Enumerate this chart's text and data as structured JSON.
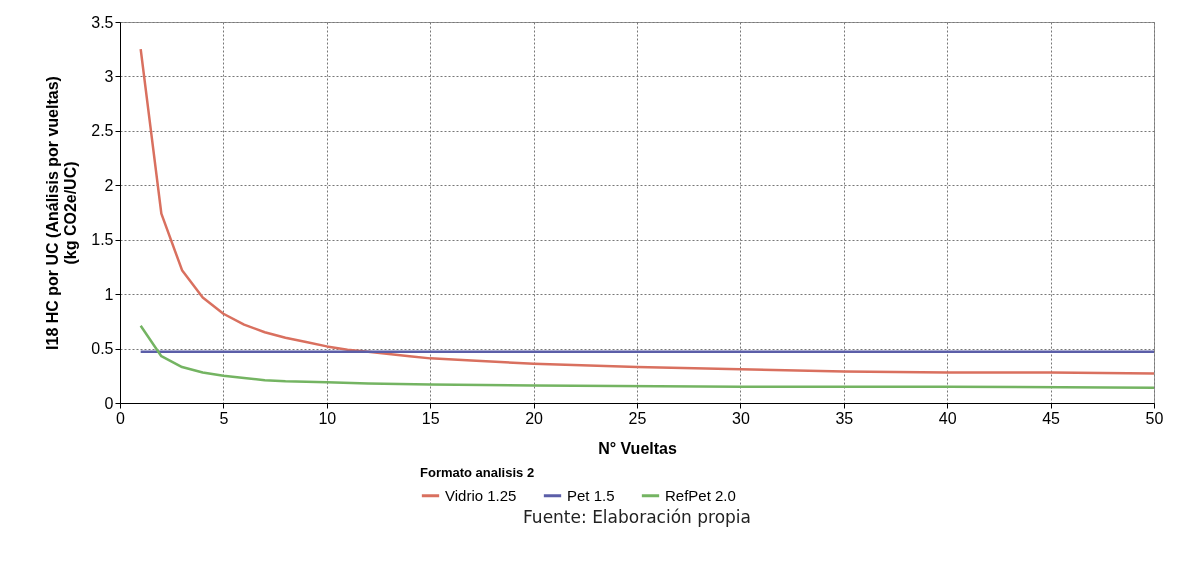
{
  "chart_data": {
    "type": "line",
    "xlabel": "N° Vueltas",
    "ylabel": "I18 HC por UC (Análisis por vueltas)\n(kg CO2e/UC)",
    "legend_title": "Formato analisis 2",
    "annotations": [
      "Fuente: Elaboración propia"
    ],
    "xlim": [
      0,
      50
    ],
    "xticks": [
      0,
      5,
      10,
      15,
      20,
      25,
      30,
      35,
      40,
      45,
      50
    ],
    "ylim": [
      0,
      3.5
    ],
    "yticks": [
      0,
      0.5,
      1,
      1.5,
      2,
      2.5,
      3,
      3.5
    ],
    "grid": true,
    "legend": "bottom",
    "line_style": "solid",
    "marker": "none",
    "series": [
      {
        "name": "Vidrio 1.25",
        "color": "#d9705f",
        "x": [
          1,
          2,
          3,
          4,
          5,
          6,
          7,
          8,
          9,
          10,
          11,
          12,
          13,
          14,
          15,
          17,
          20,
          25,
          30,
          35,
          40,
          45,
          50
        ],
        "values": [
          3.25,
          1.74,
          1.22,
          0.97,
          0.82,
          0.72,
          0.65,
          0.6,
          0.56,
          0.52,
          0.49,
          0.47,
          0.45,
          0.43,
          0.41,
          0.39,
          0.36,
          0.33,
          0.31,
          0.29,
          0.28,
          0.28,
          0.27
        ]
      },
      {
        "name": "Pet 1.5",
        "color": "#5b5ea8",
        "x": [
          1,
          50
        ],
        "values": [
          0.47,
          0.47
        ]
      },
      {
        "name": "RefPet 2.0",
        "color": "#74b462",
        "x": [
          1,
          2,
          3,
          4,
          5,
          6,
          7,
          8,
          10,
          12,
          15,
          20,
          30,
          40,
          50
        ],
        "values": [
          0.71,
          0.43,
          0.33,
          0.28,
          0.25,
          0.23,
          0.21,
          0.2,
          0.19,
          0.18,
          0.17,
          0.16,
          0.15,
          0.15,
          0.14
        ]
      }
    ]
  }
}
